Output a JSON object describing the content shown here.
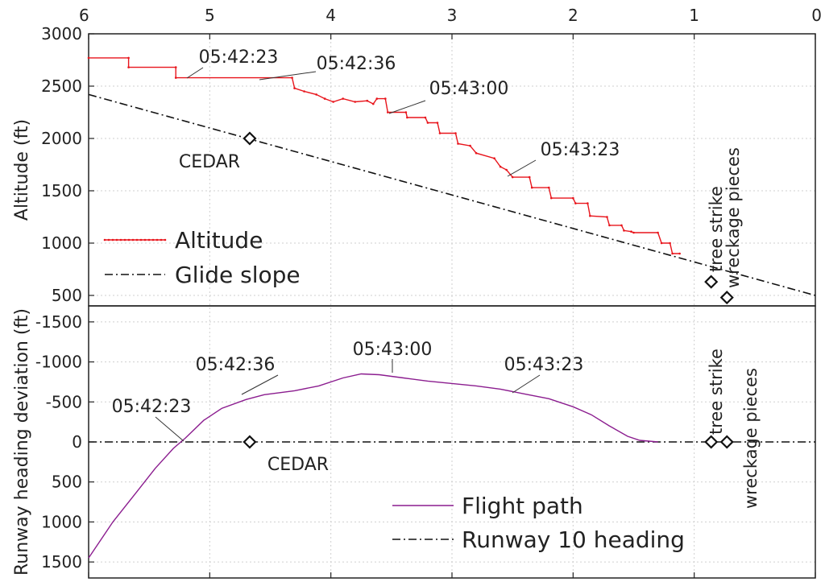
{
  "chart_data": [
    {
      "type": "line",
      "panel": "top",
      "ylabel": "Altitude (ft)",
      "ylim": [
        400,
        3000
      ],
      "xlim": [
        6,
        0
      ],
      "x_ticks": [
        "6",
        "5",
        "4",
        "3",
        "2",
        "1",
        "0"
      ],
      "y_ticks": [
        "3000",
        "2500",
        "2000",
        "1500",
        "1000",
        "500"
      ],
      "grid": true,
      "legend_placement": "lower-left",
      "series": [
        {
          "name": "Altitude",
          "color": "#e8141b",
          "step": true,
          "points": [
            [
              6.0,
              2770
            ],
            [
              5.67,
              2770
            ],
            [
              5.67,
              2680
            ],
            [
              5.28,
              2680
            ],
            [
              5.28,
              2580
            ],
            [
              4.32,
              2580
            ],
            [
              4.3,
              2480
            ],
            [
              4.22,
              2450
            ],
            [
              4.12,
              2420
            ],
            [
              4.05,
              2380
            ],
            [
              3.98,
              2350
            ],
            [
              3.9,
              2380
            ],
            [
              3.8,
              2350
            ],
            [
              3.7,
              2360
            ],
            [
              3.65,
              2330
            ],
            [
              3.62,
              2380
            ],
            [
              3.55,
              2380
            ],
            [
              3.53,
              2250
            ],
            [
              3.38,
              2250
            ],
            [
              3.37,
              2200
            ],
            [
              3.22,
              2200
            ],
            [
              3.2,
              2150
            ],
            [
              3.12,
              2150
            ],
            [
              3.1,
              2050
            ],
            [
              2.97,
              2050
            ],
            [
              2.95,
              1950
            ],
            [
              2.85,
              1930
            ],
            [
              2.8,
              1860
            ],
            [
              2.65,
              1810
            ],
            [
              2.6,
              1730
            ],
            [
              2.55,
              1700
            ],
            [
              2.5,
              1630
            ],
            [
              2.36,
              1630
            ],
            [
              2.34,
              1530
            ],
            [
              2.2,
              1530
            ],
            [
              2.18,
              1430
            ],
            [
              2.0,
              1430
            ],
            [
              1.98,
              1380
            ],
            [
              1.88,
              1380
            ],
            [
              1.86,
              1260
            ],
            [
              1.72,
              1250
            ],
            [
              1.7,
              1170
            ],
            [
              1.6,
              1170
            ],
            [
              1.58,
              1120
            ],
            [
              1.52,
              1110
            ],
            [
              1.5,
              1100
            ],
            [
              1.3,
              1100
            ],
            [
              1.27,
              1000
            ],
            [
              1.2,
              1000
            ],
            [
              1.18,
              900
            ],
            [
              1.12,
              900
            ]
          ]
        },
        {
          "name": "Glide slope",
          "color": "#111111",
          "dash": "dash-dot",
          "points": [
            [
              6.0,
              2420
            ],
            [
              0.0,
              500
            ]
          ]
        }
      ],
      "markers": [
        {
          "x": 4.67,
          "y": 2000,
          "label": "CEDAR"
        },
        {
          "x": 0.86,
          "y": 630,
          "label": "tree strike"
        },
        {
          "x": 0.73,
          "y": 480,
          "label": "wreckage pieces"
        }
      ],
      "annotations": [
        {
          "text": "05:42:23",
          "x": 5.25,
          "y": 2575
        },
        {
          "text": "05:42:36",
          "x": 4.6,
          "y": 2580
        },
        {
          "text": "05:43:00",
          "x": 3.45,
          "y": 2250
        },
        {
          "text": "05:43:23",
          "x": 2.45,
          "y": 1630
        }
      ]
    },
    {
      "type": "line",
      "panel": "bottom",
      "ylabel": "Runway heading deviation (ft)",
      "ylim": [
        1700,
        -1700
      ],
      "xlim": [
        6,
        0
      ],
      "y_ticks": [
        "-1500",
        "-1000",
        "-500",
        "0",
        "500",
        "1000",
        "1500"
      ],
      "grid": true,
      "legend_placement": "lower-right",
      "series": [
        {
          "name": "Flight path",
          "color": "#8b1d8f",
          "points": [
            [
              6.0,
              1450
            ],
            [
              5.8,
              1000
            ],
            [
              5.6,
              620
            ],
            [
              5.45,
              330
            ],
            [
              5.3,
              80
            ],
            [
              5.2,
              -50
            ],
            [
              5.05,
              -270
            ],
            [
              4.9,
              -420
            ],
            [
              4.7,
              -530
            ],
            [
              4.55,
              -590
            ],
            [
              4.3,
              -640
            ],
            [
              4.1,
              -700
            ],
            [
              3.9,
              -800
            ],
            [
              3.75,
              -850
            ],
            [
              3.6,
              -840
            ],
            [
              3.4,
              -800
            ],
            [
              3.2,
              -760
            ],
            [
              3.0,
              -730
            ],
            [
              2.8,
              -700
            ],
            [
              2.6,
              -660
            ],
            [
              2.4,
              -600
            ],
            [
              2.2,
              -540
            ],
            [
              2.0,
              -440
            ],
            [
              1.85,
              -340
            ],
            [
              1.7,
              -200
            ],
            [
              1.55,
              -70
            ],
            [
              1.45,
              -20
            ],
            [
              1.3,
              0
            ]
          ]
        },
        {
          "name": "Runway 10 heading",
          "color": "#111111",
          "dash": "dash-dot",
          "points": [
            [
              6.0,
              0
            ],
            [
              0.0,
              0
            ]
          ]
        }
      ],
      "markers": [
        {
          "x": 4.67,
          "y": 0,
          "label": "CEDAR"
        },
        {
          "x": 0.86,
          "y": 0,
          "label": "tree strike"
        },
        {
          "x": 0.73,
          "y": 0,
          "label": "wreckage pieces"
        }
      ],
      "annotations": [
        {
          "text": "05:42:23",
          "x": 5.25,
          "y": 0
        },
        {
          "text": "05:42:36",
          "x": 4.65,
          "y": -560
        },
        {
          "text": "05:43:00",
          "x": 3.5,
          "y": -830
        },
        {
          "text": "05:43:23",
          "x": 2.5,
          "y": -620
        }
      ]
    }
  ]
}
